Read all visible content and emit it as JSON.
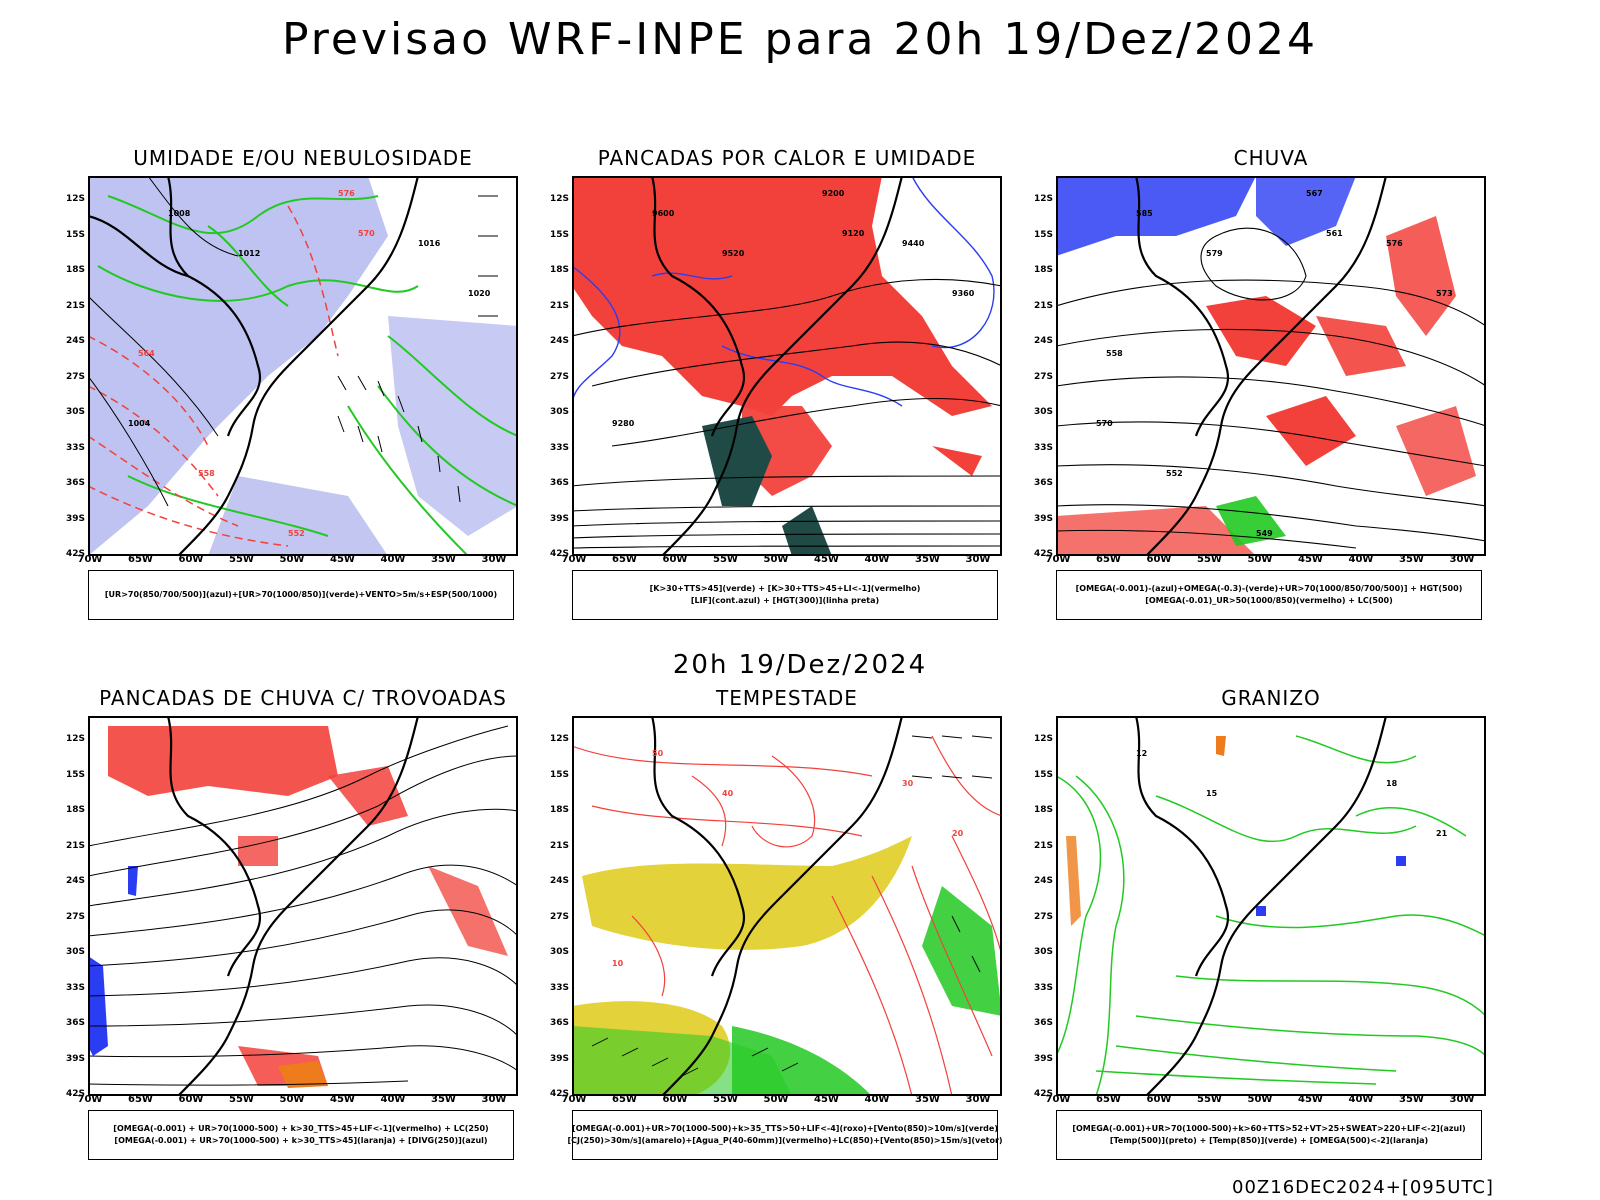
{
  "header": {
    "title": "Previsao WRF-INPE  para 20h 19/Dez/2024"
  },
  "mid_date": "20h 19/Dez/2024",
  "footer": {
    "stamp": "00Z16DEC2024+[095UTC]"
  },
  "axes": {
    "lat_labels": [
      "12S",
      "15S",
      "18S",
      "21S",
      "24S",
      "27S",
      "30S",
      "33S",
      "36S",
      "39S",
      "42S"
    ],
    "lon_labels": [
      "70W",
      "65W",
      "60W",
      "55W",
      "50W",
      "45W",
      "40W",
      "35W",
      "30W"
    ]
  },
  "colors": {
    "red": "#f2413b",
    "green": "#22c922",
    "blue": "#2b3df2",
    "lavender": "#b4b8ee",
    "yellow": "#e3d23a",
    "orange": "#ee7c1c",
    "darkteal": "#1f4a46",
    "black": "#000000"
  },
  "panels": [
    {
      "id": "umidade",
      "title": "UMIDADE E/OU NEBULOSIDADE",
      "legend": [
        "[UR>70(850/700/500)](azul)+[UR>70(1000/850)](verde)+VENTO>5m/s+ESP(500/1000)"
      ],
      "contour_labels": [
        "1008",
        "1012",
        "1016",
        "1020",
        "1004",
        "576",
        "570",
        "564",
        "558",
        "552"
      ]
    },
    {
      "id": "pancadas-calor",
      "title": "PANCADAS POR CALOR E UMIDADE",
      "legend": [
        "[K>30+TTS>45](verde) + [K>30+TTS>45+LI<-1](vermelho)",
        "[LIF](cont.azul) + [HGT(300)](linha preta)"
      ],
      "contour_labels": [
        "9600",
        "9520",
        "9440",
        "9360",
        "9280",
        "9200",
        "9120"
      ]
    },
    {
      "id": "chuva",
      "title": "CHUVA",
      "legend": [
        "[OMEGA(-0.001)-(azul)+OMEGA(-0.3)-(verde)+UR>70(1000/850/700/500)] + HGT(500)",
        "[OMEGA(-0.01)_UR>50(1000/850)(vermelho) + LC(500)"
      ],
      "contour_labels": [
        "585",
        "579",
        "576",
        "573",
        "570",
        "567",
        "561",
        "558",
        "552",
        "549"
      ]
    },
    {
      "id": "trovoadas",
      "title": "PANCADAS DE CHUVA C/ TROVOADAS",
      "legend": [
        "[OMEGA(-0.001) + UR>70(1000-500) + k>30_TTS>45+LIF<-1](vermelho) + LC(250)",
        "[OMEGA(-0.001) + UR>70(1000-500) + k>30_TTS>45](laranja) + [DIVG(250)](azul)"
      ],
      "contour_labels": []
    },
    {
      "id": "tempestade",
      "title": "TEMPESTADE",
      "legend": [
        "[OMEGA(-0.001)+UR>70(1000-500)+k>35_TTS>50+LIF<-4](roxo)+[Vento(850)>10m/s](verde)",
        "[CJ(250)>30m/s](amarelo)+[Agua_P(40-60mm)](vermelho)+LC(850)+[Vento(850)>15m/s](vetor)"
      ],
      "contour_labels": [
        "50",
        "40",
        "30",
        "20",
        "10"
      ]
    },
    {
      "id": "granizo",
      "title": "GRANIZO",
      "legend": [
        "[OMEGA(-0.001)+UR>70(1000-500)+k>60+TTS>52+VT>25+SWEAT>220+LIF<-2](azul)",
        "[Temp(500)](preto) + [Temp(850)](verde) + [OMEGA(500)<-2](laranja)"
      ],
      "contour_labels": [
        "12",
        "15",
        "18",
        "21"
      ]
    }
  ]
}
